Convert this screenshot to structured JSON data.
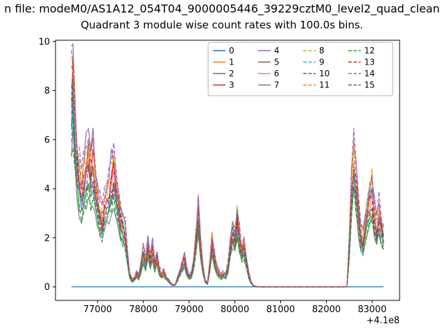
{
  "chart_data": {
    "type": "line",
    "suptitle": "n file: modeM0/AS1A12_054T04_9000005446_39229cztM0_level2_quad_clean",
    "title": "Quadrant 3 module wise count rates with 100.0s bins.",
    "xlabel": "",
    "ylabel": "",
    "x_offset_label": "+4.1e8",
    "xlim": [
      76080,
      83600
    ],
    "ylim": [
      -0.55,
      10.05
    ],
    "xticks": [
      77000,
      78000,
      79000,
      80000,
      81000,
      82000,
      83000
    ],
    "xtick_labels": [
      "77000",
      "78000",
      "79000",
      "80000",
      "81000",
      "82000",
      "83000"
    ],
    "yticks": [
      0,
      2,
      4,
      6,
      8,
      10
    ],
    "ytick_labels": [
      "0",
      "2",
      "4",
      "6",
      "8",
      "10"
    ],
    "grid": false,
    "legend_position": "upper center-right inside axes",
    "legend_columns": 4,
    "x": [
      76430,
      76460,
      76500,
      76550,
      76600,
      76650,
      76700,
      76750,
      76800,
      76850,
      76900,
      76950,
      77000,
      77050,
      77100,
      77150,
      77200,
      77250,
      77300,
      77350,
      77400,
      77450,
      77500,
      77550,
      77600,
      77650,
      77700,
      77750,
      77800,
      77850,
      77900,
      77950,
      78000,
      78050,
      78100,
      78150,
      78200,
      78250,
      78300,
      78350,
      78400,
      78450,
      78500,
      78550,
      78600,
      78650,
      78700,
      78750,
      78800,
      78850,
      78900,
      78950,
      79000,
      79050,
      79100,
      79150,
      79200,
      79250,
      79300,
      79350,
      79400,
      79450,
      79500,
      79550,
      79600,
      79650,
      79700,
      79750,
      79800,
      79850,
      79900,
      79950,
      80000,
      80050,
      80100,
      80150,
      80200,
      80250,
      80300,
      80350,
      80400,
      80500,
      80700,
      81000,
      81500,
      82000,
      82300,
      82400,
      82450,
      82500,
      82550,
      82600,
      82650,
      82700,
      82750,
      82800,
      82850,
      82900,
      82950,
      83000,
      83050,
      83100,
      83150,
      83200,
      83250
    ],
    "base_values": [
      7.0,
      7.6,
      6.2,
      4.8,
      4.0,
      3.6,
      3.9,
      4.4,
      4.9,
      4.3,
      4.6,
      3.8,
      3.2,
      2.8,
      2.5,
      2.9,
      3.3,
      3.6,
      4.0,
      4.3,
      3.7,
      3.1,
      2.6,
      2.2,
      2.0,
      1.2,
      0.45,
      0.25,
      0.3,
      0.5,
      0.4,
      0.8,
      1.3,
      0.9,
      1.6,
      1.0,
      1.5,
      0.8,
      1.1,
      0.6,
      0.45,
      0.55,
      0.35,
      0.25,
      0.12,
      0.06,
      0.1,
      0.35,
      0.55,
      0.8,
      1.0,
      0.6,
      0.4,
      0.5,
      0.9,
      1.8,
      2.8,
      1.6,
      0.7,
      0.25,
      0.12,
      0.8,
      1.7,
      1.1,
      0.7,
      0.5,
      0.4,
      0.5,
      0.45,
      0.8,
      1.6,
      2.1,
      1.8,
      2.6,
      1.9,
      1.3,
      1.5,
      1.0,
      0.5,
      0.2,
      0.05,
      0,
      0,
      0,
      0,
      0,
      0,
      0,
      0.02,
      1.5,
      3.5,
      4.8,
      3.8,
      2.8,
      2.0,
      1.7,
      2.4,
      2.9,
      3.3,
      3.6,
      2.6,
      2.1,
      2.7,
      2.3,
      1.9
    ],
    "series_note": "values[i] = base_values[i] * scale (module 0 is flat at zero)",
    "series": [
      {
        "name": "0",
        "color": "#1f77b4",
        "dash": false,
        "scale": 0.0
      },
      {
        "name": "1",
        "color": "#ff7f0e",
        "dash": false,
        "scale": 1.05
      },
      {
        "name": "2",
        "color": "#2ca02c",
        "dash": false,
        "scale": 0.85
      },
      {
        "name": "3",
        "color": "#d62728",
        "dash": false,
        "scale": 1.1
      },
      {
        "name": "4",
        "color": "#9467bd",
        "dash": false,
        "scale": 1.28
      },
      {
        "name": "5",
        "color": "#8c564b",
        "dash": false,
        "scale": 0.95
      },
      {
        "name": "6",
        "color": "#e377c2",
        "dash": false,
        "scale": 1.0
      },
      {
        "name": "7",
        "color": "#7f7f7f",
        "dash": false,
        "scale": 0.78
      },
      {
        "name": "8",
        "color": "#bcbd22",
        "dash": true,
        "scale": 1.15
      },
      {
        "name": "9",
        "color": "#17becf",
        "dash": true,
        "scale": 0.9
      },
      {
        "name": "10",
        "color": "#1f77b4",
        "dash": true,
        "scale": 1.05
      },
      {
        "name": "11",
        "color": "#ff7f0e",
        "dash": true,
        "scale": 1.2
      },
      {
        "name": "12",
        "color": "#2ca02c",
        "dash": true,
        "scale": 0.8
      },
      {
        "name": "13",
        "color": "#d62728",
        "dash": true,
        "scale": 1.1
      },
      {
        "name": "14",
        "color": "#9467bd",
        "dash": true,
        "scale": 1.3
      },
      {
        "name": "15",
        "color": "#8c564b",
        "dash": true,
        "scale": 0.95
      }
    ],
    "colors": {
      "spine": "#000000",
      "tick_label": "#000000",
      "legend_border": "#b0b0b0",
      "background": "#ffffff"
    }
  }
}
